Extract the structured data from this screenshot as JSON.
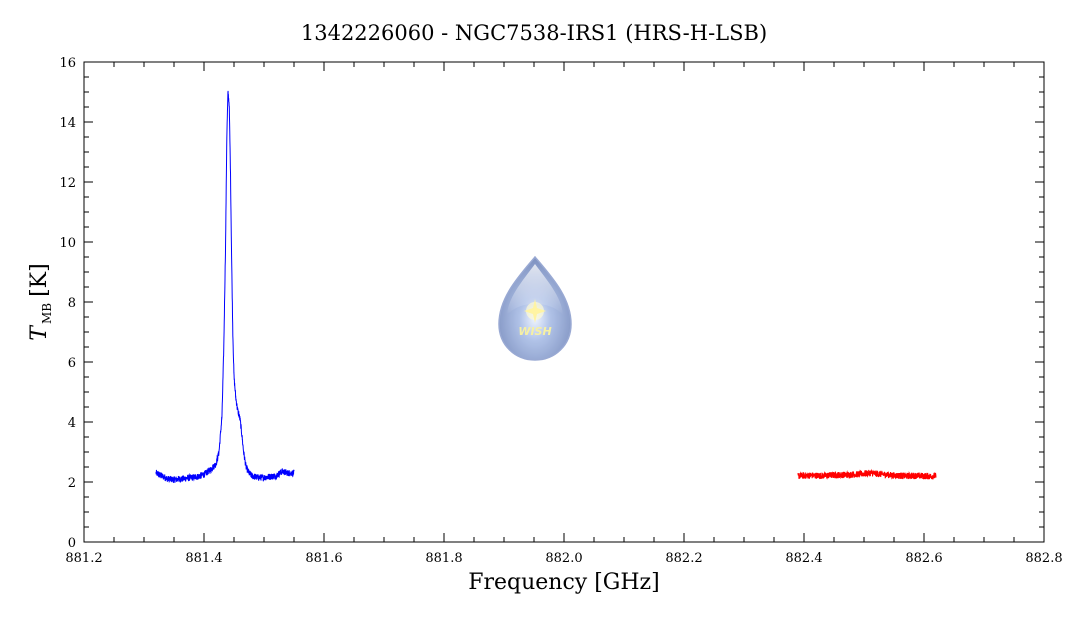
{
  "chart_data": {
    "type": "line",
    "title": "1342226060 - NGC7538-IRS1 (HRS-H-LSB)",
    "xlabel": "Frequency [GHz]",
    "ylabel": {
      "symbol": "T",
      "subscript": "MB",
      "unit": "[K]"
    },
    "xlim": [
      881.2,
      882.8
    ],
    "ylim": [
      0,
      16
    ],
    "xticks": [
      881.2,
      881.4,
      881.6,
      881.8,
      882.0,
      882.2,
      882.4,
      882.6,
      882.8
    ],
    "xtick_labels": [
      "881.2",
      "881.4",
      "881.6",
      "881.8",
      "882.0",
      "882.2",
      "882.4",
      "882.6",
      "882.8"
    ],
    "yticks": [
      0,
      2,
      4,
      6,
      8,
      10,
      12,
      14,
      16
    ],
    "ytick_labels": [
      "0",
      "2",
      "4",
      "6",
      "8",
      "10",
      "12",
      "14",
      "16"
    ],
    "grid": false,
    "series": [
      {
        "color": "#0000ff",
        "x_range": [
          881.32,
          881.55
        ],
        "points": [
          [
            881.32,
            2.3
          ],
          [
            881.33,
            2.2
          ],
          [
            881.34,
            2.1
          ],
          [
            881.35,
            2.08
          ],
          [
            881.36,
            2.1
          ],
          [
            881.37,
            2.12
          ],
          [
            881.38,
            2.15
          ],
          [
            881.39,
            2.18
          ],
          [
            881.4,
            2.25
          ],
          [
            881.41,
            2.4
          ],
          [
            881.42,
            2.6
          ],
          [
            881.425,
            3.0
          ],
          [
            881.43,
            4.2
          ],
          [
            881.433,
            6.5
          ],
          [
            881.436,
            10.0
          ],
          [
            881.438,
            13.5
          ],
          [
            881.44,
            15.0
          ],
          [
            881.442,
            14.6
          ],
          [
            881.444,
            12.5
          ],
          [
            881.446,
            9.5
          ],
          [
            881.448,
            7.0
          ],
          [
            881.45,
            5.5
          ],
          [
            881.453,
            4.8
          ],
          [
            881.456,
            4.4
          ],
          [
            881.46,
            4.1
          ],
          [
            881.463,
            3.6
          ],
          [
            881.466,
            3.0
          ],
          [
            881.47,
            2.5
          ],
          [
            881.475,
            2.3
          ],
          [
            881.48,
            2.2
          ],
          [
            881.49,
            2.15
          ],
          [
            881.5,
            2.15
          ],
          [
            881.51,
            2.18
          ],
          [
            881.52,
            2.2
          ],
          [
            881.53,
            2.35
          ],
          [
            881.54,
            2.3
          ],
          [
            881.55,
            2.3
          ]
        ]
      },
      {
        "color": "#ff0000",
        "x_range": [
          882.39,
          882.62
        ],
        "points": [
          [
            882.39,
            2.2
          ],
          [
            882.41,
            2.22
          ],
          [
            882.43,
            2.21
          ],
          [
            882.45,
            2.23
          ],
          [
            882.47,
            2.24
          ],
          [
            882.49,
            2.26
          ],
          [
            882.51,
            2.3
          ],
          [
            882.53,
            2.26
          ],
          [
            882.55,
            2.22
          ],
          [
            882.57,
            2.2
          ],
          [
            882.59,
            2.21
          ],
          [
            882.61,
            2.19
          ],
          [
            882.62,
            2.2
          ]
        ]
      }
    ]
  },
  "logo": {
    "text": "WISH"
  }
}
